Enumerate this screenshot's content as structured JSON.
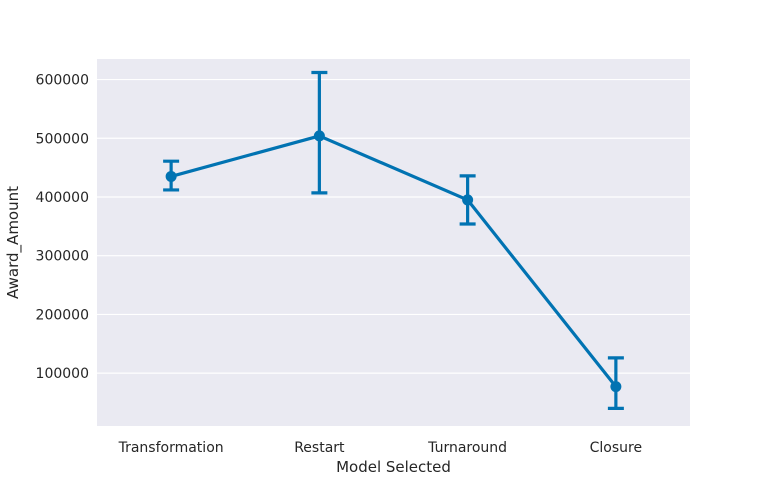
{
  "chart_data": {
    "type": "line",
    "title": "",
    "xlabel": "Model Selected",
    "ylabel": "Award_Amount",
    "categories": [
      "Transformation",
      "Restart",
      "Turnaround",
      "Closure"
    ],
    "series": [
      {
        "values": [
          435000,
          504000,
          395000,
          77000
        ],
        "ci_low": [
          412000,
          407000,
          354000,
          40000
        ],
        "ci_high": [
          461000,
          612000,
          436000,
          126000
        ]
      }
    ],
    "ylim": [
      10000,
      635000
    ],
    "yticks": [
      100000,
      200000,
      300000,
      400000,
      500000,
      600000
    ],
    "ytick_labels": [
      "100000",
      "200000",
      "300000",
      "400000",
      "500000",
      "600000"
    ],
    "grid": true,
    "legend": "none",
    "colors": {
      "series": "#0173b2",
      "plot_background": "#eaeaf2",
      "grid": "#ffffff",
      "text": "#262626"
    }
  }
}
